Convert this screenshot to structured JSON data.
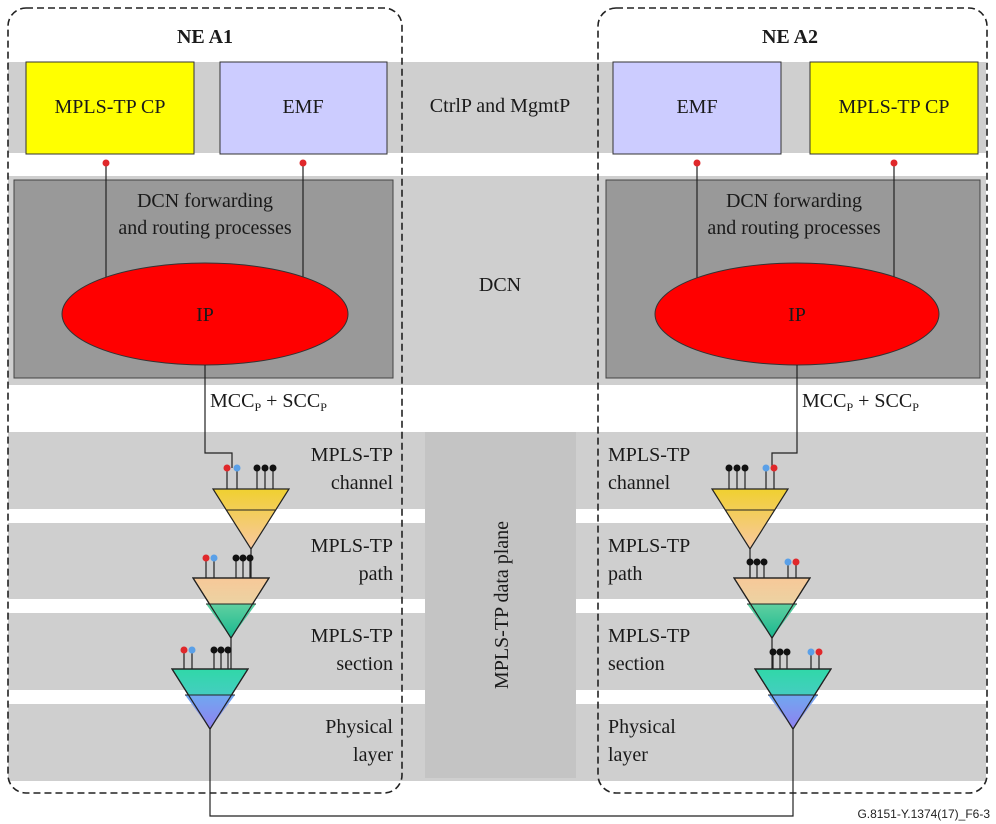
{
  "ne_left": {
    "title": "NE A1",
    "cp_label": "MPLS-TP CP",
    "emf_label": "EMF",
    "dcn_process": [
      "DCN forwarding",
      "and routing processes"
    ],
    "ip_label": "IP",
    "mcc_main": "MCC",
    "mcc_sub": "P",
    "scc_main": " + SCC",
    "scc_sub": "P"
  },
  "ne_right": {
    "title": "NE A2",
    "cp_label": "MPLS-TP CP",
    "emf_label": "EMF",
    "dcn_process": [
      "DCN forwarding",
      "and routing processes"
    ],
    "ip_label": "IP",
    "mcc_main": "MCC",
    "mcc_sub": "P",
    "scc_main": " + SCC",
    "scc_sub": "P"
  },
  "bands": {
    "ctrl_mgmt": "CtrlP and MgmtP",
    "dcn": "DCN"
  },
  "data_plane_label": "MPLS-TP data plane",
  "layers_left": [
    {
      "line1": "MPLS-TP",
      "line2": "channel"
    },
    {
      "line1": "MPLS-TP",
      "line2": "path"
    },
    {
      "line1": "MPLS-TP",
      "line2": "section"
    },
    {
      "line1": "Physical",
      "line2": "layer"
    }
  ],
  "layers_right": [
    {
      "line1": "MPLS-TP",
      "line2": "channel"
    },
    {
      "line1": "MPLS-TP",
      "line2": "path"
    },
    {
      "line1": "MPLS-TP",
      "line2": "section"
    },
    {
      "line1": "Physical",
      "line2": "layer"
    }
  ],
  "figure_id": "G.8151-Y.1374(17)_F6-3",
  "colors": {
    "band": "#cfcfcf",
    "dcn_box": "#999999",
    "cp_box": "#ffff00",
    "emf_box": "#ccccff",
    "ip": "#ff0000",
    "dot_red": "#e0282b",
    "dot_blue": "#5aa0e8",
    "dot_black": "#111111"
  }
}
